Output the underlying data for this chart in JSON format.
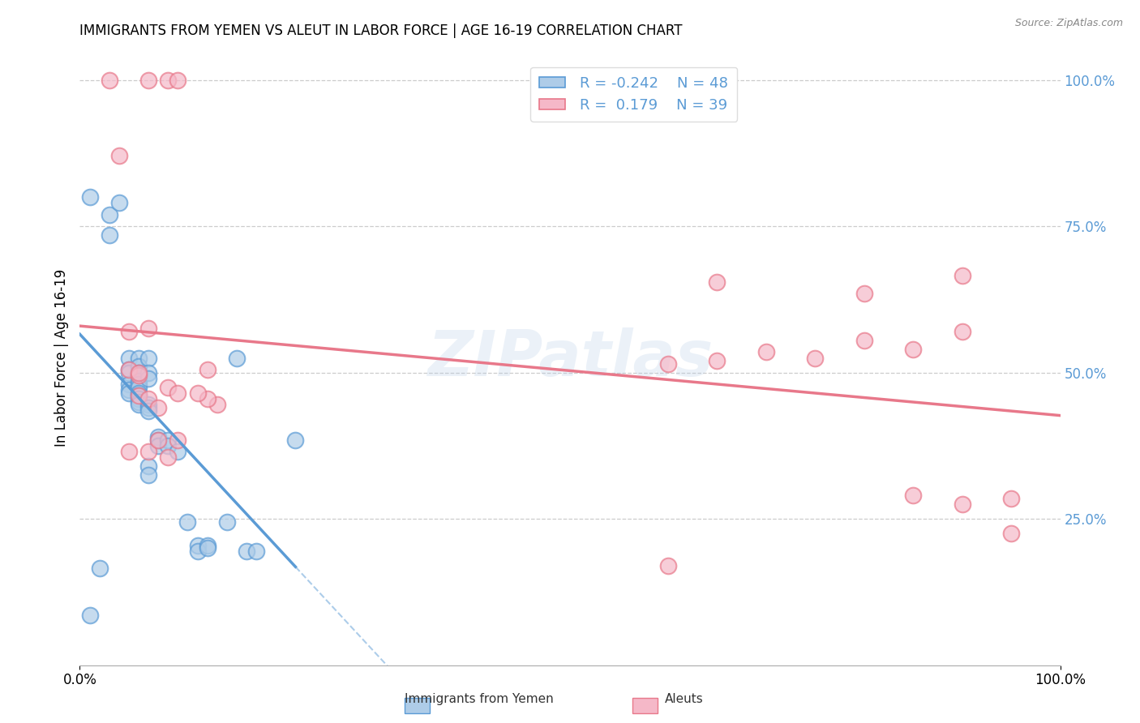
{
  "title": "IMMIGRANTS FROM YEMEN VS ALEUT IN LABOR FORCE | AGE 16-19 CORRELATION CHART",
  "source": "Source: ZipAtlas.com",
  "ylabel": "In Labor Force | Age 16-19",
  "ylabel_right_ticks": [
    "100.0%",
    "75.0%",
    "50.0%",
    "25.0%"
  ],
  "ylabel_right_vals": [
    1.0,
    0.75,
    0.5,
    0.25
  ],
  "background_color": "#ffffff",
  "watermark": "ZIPatlas",
  "legend_r1": "R = -0.242",
  "legend_n1": "N = 48",
  "legend_r2": "R =  0.179",
  "legend_n2": "N = 39",
  "blue_color": "#aecce8",
  "pink_color": "#f5b8c8",
  "blue_line_color": "#5b9bd5",
  "pink_line_color": "#e8788a",
  "blue_scatter": [
    [
      0.001,
      0.8
    ],
    [
      0.003,
      0.77
    ],
    [
      0.003,
      0.735
    ],
    [
      0.005,
      0.525
    ],
    [
      0.005,
      0.505
    ],
    [
      0.005,
      0.5
    ],
    [
      0.005,
      0.48
    ],
    [
      0.005,
      0.47
    ],
    [
      0.005,
      0.465
    ],
    [
      0.006,
      0.525
    ],
    [
      0.006,
      0.51
    ],
    [
      0.006,
      0.5
    ],
    [
      0.006,
      0.495
    ],
    [
      0.006,
      0.485
    ],
    [
      0.006,
      0.48
    ],
    [
      0.006,
      0.475
    ],
    [
      0.006,
      0.465
    ],
    [
      0.006,
      0.46
    ],
    [
      0.006,
      0.455
    ],
    [
      0.006,
      0.45
    ],
    [
      0.006,
      0.445
    ],
    [
      0.007,
      0.525
    ],
    [
      0.007,
      0.5
    ],
    [
      0.007,
      0.49
    ],
    [
      0.007,
      0.445
    ],
    [
      0.007,
      0.44
    ],
    [
      0.007,
      0.435
    ],
    [
      0.007,
      0.34
    ],
    [
      0.007,
      0.325
    ],
    [
      0.008,
      0.39
    ],
    [
      0.008,
      0.385
    ],
    [
      0.008,
      0.375
    ],
    [
      0.009,
      0.385
    ],
    [
      0.009,
      0.375
    ],
    [
      0.01,
      0.365
    ],
    [
      0.011,
      0.245
    ],
    [
      0.012,
      0.205
    ],
    [
      0.012,
      0.195
    ],
    [
      0.013,
      0.205
    ],
    [
      0.013,
      0.2
    ],
    [
      0.015,
      0.245
    ],
    [
      0.016,
      0.525
    ],
    [
      0.017,
      0.195
    ],
    [
      0.018,
      0.195
    ],
    [
      0.022,
      0.385
    ],
    [
      0.001,
      0.085
    ],
    [
      0.002,
      0.165
    ],
    [
      0.004,
      0.79
    ]
  ],
  "pink_scatter": [
    [
      0.003,
      1.0
    ],
    [
      0.007,
      1.0
    ],
    [
      0.009,
      1.0
    ],
    [
      0.01,
      1.0
    ],
    [
      0.004,
      0.87
    ],
    [
      0.005,
      0.57
    ],
    [
      0.007,
      0.575
    ],
    [
      0.005,
      0.505
    ],
    [
      0.006,
      0.495
    ],
    [
      0.006,
      0.46
    ],
    [
      0.007,
      0.455
    ],
    [
      0.006,
      0.5
    ],
    [
      0.008,
      0.44
    ],
    [
      0.009,
      0.475
    ],
    [
      0.01,
      0.465
    ],
    [
      0.014,
      0.445
    ],
    [
      0.013,
      0.455
    ],
    [
      0.005,
      0.365
    ],
    [
      0.007,
      0.365
    ],
    [
      0.008,
      0.385
    ],
    [
      0.009,
      0.355
    ],
    [
      0.01,
      0.385
    ],
    [
      0.012,
      0.465
    ],
    [
      0.013,
      0.505
    ],
    [
      0.06,
      0.515
    ],
    [
      0.065,
      0.52
    ],
    [
      0.07,
      0.535
    ],
    [
      0.075,
      0.525
    ],
    [
      0.08,
      0.555
    ],
    [
      0.085,
      0.54
    ],
    [
      0.09,
      0.57
    ],
    [
      0.065,
      0.655
    ],
    [
      0.08,
      0.635
    ],
    [
      0.09,
      0.665
    ],
    [
      0.085,
      0.29
    ],
    [
      0.09,
      0.275
    ],
    [
      0.095,
      0.285
    ],
    [
      0.095,
      0.225
    ],
    [
      0.06,
      0.17
    ]
  ],
  "xlim_data": [
    0.0,
    0.1
  ],
  "ylim": [
    0.0,
    1.05
  ],
  "x_display_min": "0.0%",
  "x_display_max": "100.0%"
}
